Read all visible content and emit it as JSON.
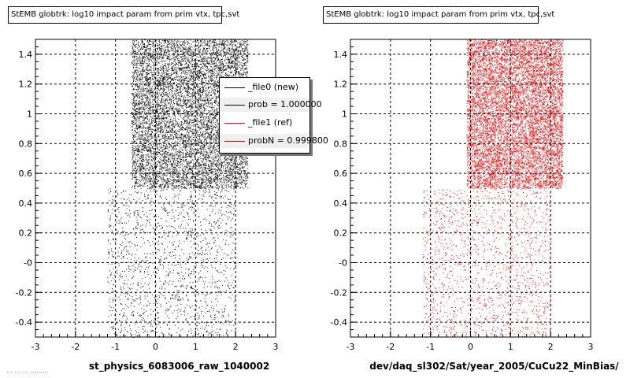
{
  "panels": [
    {
      "title": "StEMB globtrk: log10 impact param from prim vtx, tpc,svt",
      "xlabel": "st_physics_6083006_raw_1040002",
      "color": "#000000"
    },
    {
      "title": "StEMB globtrk: log10 impact param from prim vtx, tpc,svt",
      "xlabel": "dev/daq_sl302/Sat/year_2005/CuCu22_MinBias/",
      "color": "#ff0000"
    }
  ],
  "legend": {
    "entries": [
      {
        "label": "_file0 (new)",
        "color": "#000000"
      },
      {
        "label": "prob = 1.000000",
        "color": "#000000"
      },
      {
        "label": "_file1 (ref)",
        "color": "#ff0000"
      },
      {
        "label": "probN = 0.999800",
        "color": "#ff0000"
      }
    ]
  },
  "footer_text": "... ... ... .........",
  "chart_data": [
    {
      "type": "scatter",
      "title": "StEMB globtrk: log10 impact param from prim vtx, tpc,svt",
      "xlabel": "st_physics_6083006_raw_1040002",
      "ylabel": "",
      "xlim": [
        -3,
        3
      ],
      "ylim": [
        -0.5,
        1.5
      ],
      "xticks": [
        -3,
        -2,
        -1,
        0,
        1,
        2,
        3
      ],
      "yticks": [
        -0.4,
        -0.2,
        0,
        0.2,
        0.4,
        0.6,
        0.8,
        1,
        1.2,
        1.4
      ],
      "ytick_labels": [
        "-0.4",
        "-0.2",
        "-0",
        "0.2",
        "0.4",
        "0.6",
        "0.8",
        "1",
        "1.2",
        "1.4"
      ],
      "grid": true,
      "color": "#000000",
      "distribution": {
        "dense_region": {
          "x": [
            -0.6,
            2.3
          ],
          "y": [
            0.5,
            1.5
          ]
        },
        "sparse_region": {
          "x": [
            -1.2,
            2.0
          ],
          "y": [
            -0.5,
            0.5
          ]
        }
      }
    },
    {
      "type": "scatter",
      "title": "StEMB globtrk: log10 impact param from prim vtx, tpc,svt",
      "xlabel": "dev/daq_sl302/Sat/year_2005/CuCu22_MinBias/",
      "ylabel": "",
      "xlim": [
        -3,
        3
      ],
      "ylim": [
        -0.5,
        1.5
      ],
      "xticks": [
        -3,
        -2,
        -1,
        0,
        1,
        2,
        3
      ],
      "yticks": [
        -0.4,
        -0.2,
        0,
        0.2,
        0.4,
        0.6,
        0.8,
        1,
        1.2,
        1.4
      ],
      "ytick_labels": [
        "-0.4",
        "-0.2",
        "-0",
        "0.2",
        "0.4",
        "0.6",
        "0.8",
        "1",
        "1.2",
        "1.4"
      ],
      "grid": true,
      "color": "#ff0000",
      "distribution": {
        "dense_region": {
          "x": [
            -0.1,
            2.3
          ],
          "y": [
            0.5,
            1.5
          ]
        },
        "sparse_region": {
          "x": [
            -1.2,
            2.0
          ],
          "y": [
            -0.5,
            0.5
          ]
        }
      }
    }
  ]
}
